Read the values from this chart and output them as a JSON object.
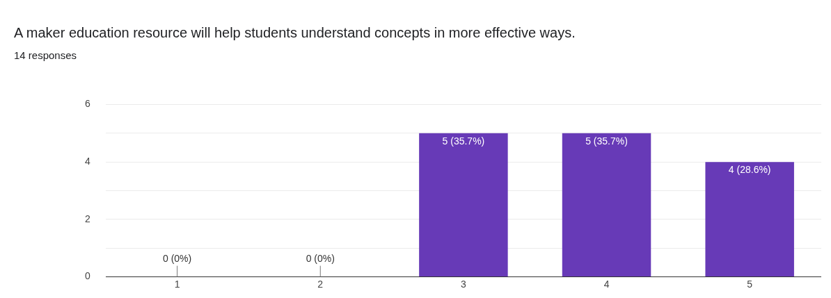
{
  "chart_data": {
    "type": "bar",
    "title": "A maker education resource will help students understand concepts in more effective ways.",
    "subtitle": "14 responses",
    "categories": [
      "1",
      "2",
      "3",
      "4",
      "5"
    ],
    "values": [
      0,
      0,
      5,
      5,
      4
    ],
    "value_labels": [
      "0 (0%)",
      "0 (0%)",
      "5 (35.7%)",
      "5 (35.7%)",
      "4 (28.6%)"
    ],
    "color": "#673ab7",
    "ylim": [
      0,
      6
    ],
    "yticks": [
      0,
      {
        "value": 1,
        "label": null
      },
      2,
      {
        "value": 3,
        "label": null
      },
      4,
      {
        "value": 5,
        "label": null
      },
      6
    ],
    "grid": "y",
    "legend": false
  }
}
